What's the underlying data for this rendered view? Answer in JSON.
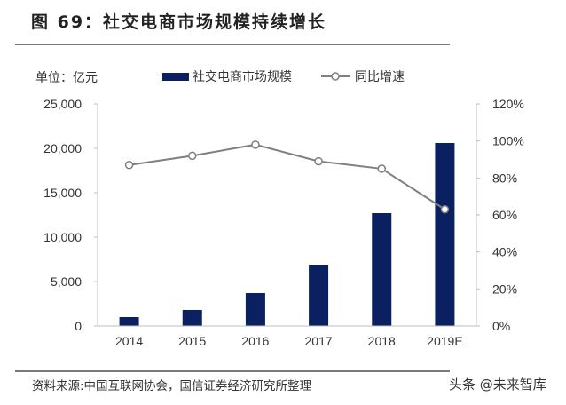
{
  "figure": {
    "title": "图 69：社交电商市场规模持续增长",
    "unit_label": "单位：亿元",
    "source": "资料来源:中国互联网协会，国信证券经济研究所整理",
    "watermark": "头条 @未来智库"
  },
  "legend": {
    "bar_label": "社交电商市场规模",
    "line_label": "同比增速"
  },
  "colors": {
    "bar": "#0a2060",
    "line": "#7f7f7f",
    "axis": "#bfbfbf",
    "rule": "#7a7a7a"
  },
  "chart_data": {
    "type": "bar+line",
    "title": "社交电商市场规模持续增长",
    "categories": [
      "2014",
      "2015",
      "2016",
      "2017",
      "2018",
      "2019E"
    ],
    "series": [
      {
        "name": "社交电商市场规模",
        "type": "bar",
        "axis": "left",
        "unit": "亿元",
        "values": [
          1000,
          1800,
          3700,
          6900,
          12700,
          20600
        ]
      },
      {
        "name": "同比增速",
        "type": "line",
        "axis": "right",
        "unit": "%",
        "values": [
          87,
          92,
          98,
          89,
          85,
          63
        ]
      }
    ],
    "left_axis": {
      "label": "单位：亿元",
      "ylim": [
        0,
        25000
      ],
      "ticks": [
        "0",
        "5,000",
        "10,000",
        "15,000",
        "20,000",
        "25,000"
      ]
    },
    "right_axis": {
      "ylim": [
        0,
        120
      ],
      "ticks": [
        "0%",
        "20%",
        "40%",
        "60%",
        "80%",
        "100%",
        "120%"
      ]
    },
    "grid": false,
    "legend_position": "top"
  }
}
